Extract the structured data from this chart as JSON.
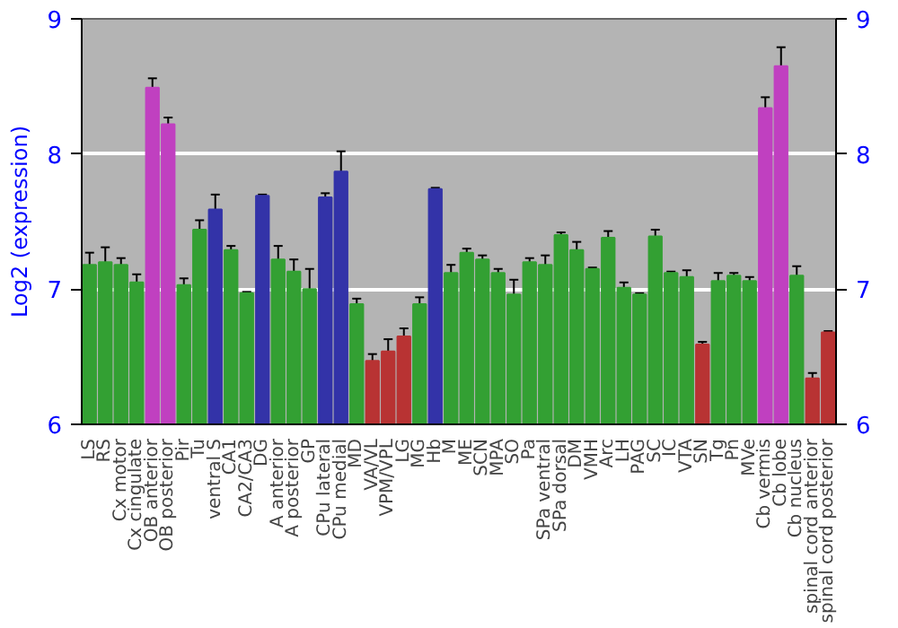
{
  "chart_data": {
    "type": "bar",
    "ylabel": "Log2 (expression)",
    "categories": [
      "LS",
      "RS",
      "Cx motor",
      "Cx cingulate",
      "OB anterior",
      "OB posterior",
      "Pir",
      "Tu",
      "ventral S",
      "CA1",
      "CA2/CA3",
      "DG",
      "A anterior",
      "A posterior",
      "GP",
      "CPu lateral",
      "CPu medial",
      "MD",
      "VA/VL",
      "VPM/VPL",
      "LG",
      "MG",
      "Hb",
      "M",
      "ME",
      "SCN",
      "MPA",
      "SO",
      "Pa",
      "SPa ventral",
      "SPa dorsal",
      "DM",
      "VMH",
      "Arc",
      "LH",
      "PAG",
      "SC",
      "IC",
      "VTA",
      "SN",
      "Tg",
      "Pn",
      "MVe",
      "Cb vermis",
      "Cb lobe",
      "Cb nucleus",
      "spinal cord anterior",
      "spinal cord posterior"
    ],
    "values": [
      7.18,
      7.2,
      7.18,
      7.05,
      8.49,
      8.22,
      7.03,
      7.44,
      7.59,
      7.29,
      6.97,
      7.69,
      7.22,
      7.13,
      7.0,
      7.68,
      7.87,
      6.89,
      6.47,
      6.54,
      6.65,
      6.89,
      7.74,
      7.12,
      7.27,
      7.22,
      7.12,
      6.96,
      7.2,
      7.18,
      7.4,
      7.29,
      7.15,
      7.38,
      7.01,
      6.96,
      7.39,
      7.12,
      7.09,
      6.59,
      7.06,
      7.1,
      7.06,
      8.34,
      8.65,
      7.1,
      6.34,
      6.68
    ],
    "errors": [
      0.09,
      0.11,
      0.05,
      0.06,
      0.07,
      0.05,
      0.05,
      0.07,
      0.11,
      0.03,
      0.01,
      0.01,
      0.1,
      0.09,
      0.15,
      0.03,
      0.15,
      0.04,
      0.05,
      0.09,
      0.06,
      0.05,
      0.01,
      0.06,
      0.03,
      0.03,
      0.03,
      0.11,
      0.03,
      0.07,
      0.02,
      0.06,
      0.01,
      0.05,
      0.04,
      0.01,
      0.05,
      0.01,
      0.05,
      0.02,
      0.06,
      0.02,
      0.03,
      0.08,
      0.14,
      0.07,
      0.04,
      0.01
    ],
    "colors": [
      "#33a033",
      "#33a033",
      "#33a033",
      "#33a033",
      "#c040c0",
      "#c040c0",
      "#33a033",
      "#33a033",
      "#3333a8",
      "#33a033",
      "#33a033",
      "#3333a8",
      "#33a033",
      "#33a033",
      "#33a033",
      "#3333a8",
      "#3333a8",
      "#33a033",
      "#b83333",
      "#b83333",
      "#b83333",
      "#33a033",
      "#3333a8",
      "#33a033",
      "#33a033",
      "#33a033",
      "#33a033",
      "#33a033",
      "#33a033",
      "#33a033",
      "#33a033",
      "#33a033",
      "#33a033",
      "#33a033",
      "#33a033",
      "#33a033",
      "#33a033",
      "#33a033",
      "#33a033",
      "#b83333",
      "#33a033",
      "#33a033",
      "#33a033",
      "#c040c0",
      "#c040c0",
      "#33a033",
      "#b83333",
      "#b83333"
    ],
    "ylim": [
      6,
      9
    ],
    "yticks": [
      6,
      7,
      8,
      9
    ],
    "y2lim": [
      6,
      9
    ],
    "y2ticks": [
      6,
      7,
      8,
      9
    ],
    "grid": "y"
  }
}
